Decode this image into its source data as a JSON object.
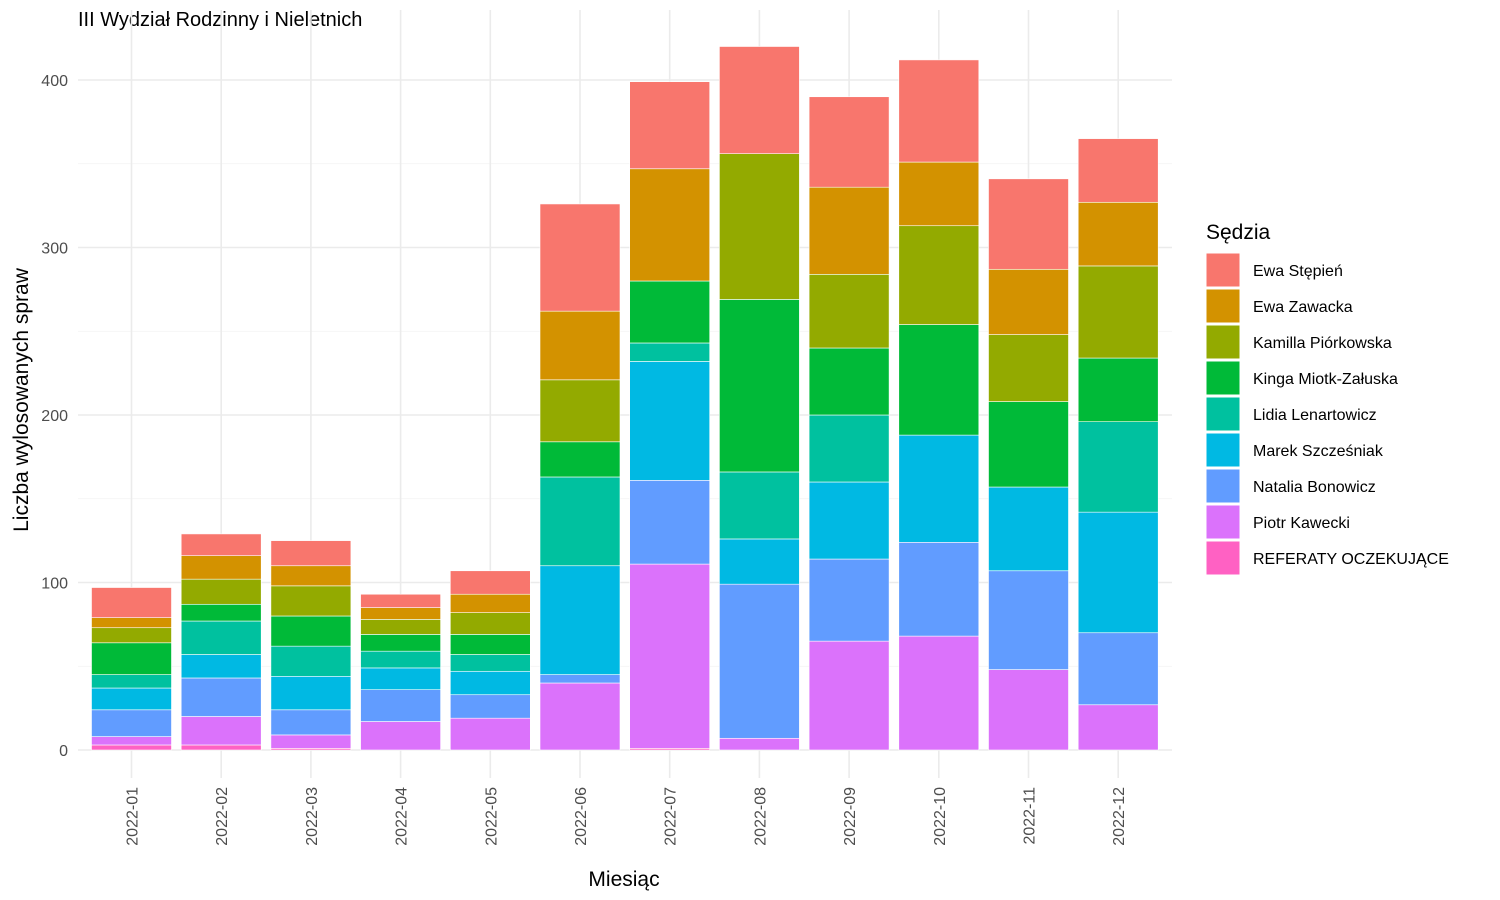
{
  "chart_data": {
    "type": "bar",
    "stacked": true,
    "title": "III Wydział Rodzinny i Nieletnich",
    "xlabel": "Miesiąc",
    "ylabel": "Liczba wylosowanych spraw",
    "legend_title": "Sędzia",
    "legend_position": "right",
    "ylim": [
      0,
      420
    ],
    "y_ticks": [
      0,
      100,
      200,
      300,
      400
    ],
    "grid": true,
    "categories": [
      "2022-01",
      "2022-02",
      "2022-03",
      "2022-04",
      "2022-05",
      "2022-06",
      "2022-07",
      "2022-08",
      "2022-09",
      "2022-10",
      "2022-11",
      "2022-12"
    ],
    "series": [
      {
        "name": "REFERATY OCZEKUJĄCE",
        "color": "#FF61C3",
        "values": [
          3,
          3,
          1,
          0,
          0,
          0,
          1,
          0,
          0,
          0,
          0,
          0
        ]
      },
      {
        "name": "Piotr Kawecki",
        "color": "#DB72FB",
        "values": [
          5,
          17,
          8,
          17,
          19,
          40,
          110,
          7,
          65,
          68,
          48,
          27
        ]
      },
      {
        "name": "Natalia Bonowicz",
        "color": "#619CFF",
        "values": [
          16,
          23,
          15,
          19,
          14,
          5,
          50,
          92,
          49,
          56,
          59,
          43
        ]
      },
      {
        "name": "Marek Szcześniak",
        "color": "#00B9E3",
        "values": [
          13,
          14,
          20,
          13,
          14,
          65,
          71,
          27,
          46,
          64,
          50,
          72
        ]
      },
      {
        "name": "Lidia Lenartowicz",
        "color": "#00C19F",
        "values": [
          8,
          20,
          18,
          10,
          10,
          53,
          11,
          40,
          40,
          0,
          0,
          54
        ]
      },
      {
        "name": "Kinga Miotk-Załuska",
        "color": "#00BA38",
        "values": [
          19,
          10,
          18,
          10,
          12,
          21,
          37,
          103,
          40,
          66,
          51,
          38
        ]
      },
      {
        "name": "Kamilla Piórkowska",
        "color": "#93AA00",
        "values": [
          9,
          15,
          18,
          9,
          13,
          37,
          0,
          87,
          44,
          59,
          40,
          55
        ]
      },
      {
        "name": "Ewa Zawacka",
        "color": "#D39200",
        "values": [
          6,
          14,
          12,
          7,
          11,
          41,
          67,
          0,
          52,
          38,
          39,
          38
        ]
      },
      {
        "name": "Ewa Stępień",
        "color": "#F8766D",
        "values": [
          18,
          13,
          15,
          8,
          14,
          64,
          52,
          64,
          54,
          61,
          54,
          38
        ]
      }
    ],
    "legend_order": [
      "Ewa Stępień",
      "Ewa Zawacka",
      "Kamilla Piórkowska",
      "Kinga Miotk-Załuska",
      "Lidia Lenartowicz",
      "Marek Szcześniak",
      "Natalia Bonowicz",
      "Piotr Kawecki",
      "REFERATY OCZEKUJĄCE"
    ]
  }
}
